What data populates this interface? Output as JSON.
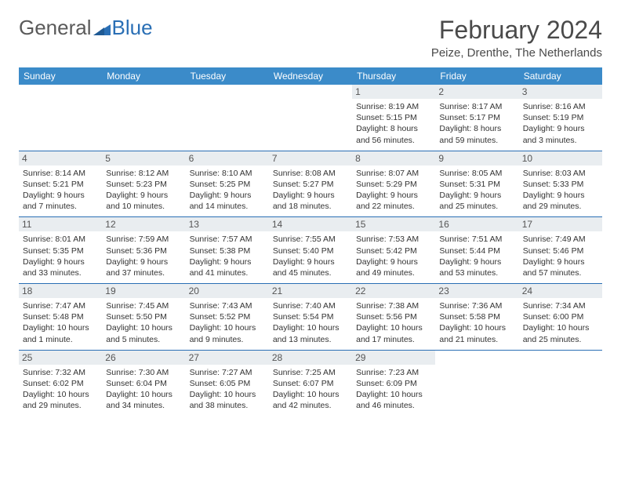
{
  "brand": {
    "name1": "General",
    "name2": "Blue",
    "color1": "#5a5a5a",
    "color2": "#2a6fb5"
  },
  "title": "February 2024",
  "location": "Peize, Drenthe, The Netherlands",
  "header_bg": "#3b8bc9",
  "header_text_color": "#ffffff",
  "border_color": "#2a6fb5",
  "daynum_bg": "#e9edf0",
  "daynames": [
    "Sunday",
    "Monday",
    "Tuesday",
    "Wednesday",
    "Thursday",
    "Friday",
    "Saturday"
  ],
  "weeks": [
    [
      null,
      null,
      null,
      null,
      {
        "n": "1",
        "sr": "Sunrise: 8:19 AM",
        "ss": "Sunset: 5:15 PM",
        "dl": "Daylight: 8 hours and 56 minutes."
      },
      {
        "n": "2",
        "sr": "Sunrise: 8:17 AM",
        "ss": "Sunset: 5:17 PM",
        "dl": "Daylight: 8 hours and 59 minutes."
      },
      {
        "n": "3",
        "sr": "Sunrise: 8:16 AM",
        "ss": "Sunset: 5:19 PM",
        "dl": "Daylight: 9 hours and 3 minutes."
      }
    ],
    [
      {
        "n": "4",
        "sr": "Sunrise: 8:14 AM",
        "ss": "Sunset: 5:21 PM",
        "dl": "Daylight: 9 hours and 7 minutes."
      },
      {
        "n": "5",
        "sr": "Sunrise: 8:12 AM",
        "ss": "Sunset: 5:23 PM",
        "dl": "Daylight: 9 hours and 10 minutes."
      },
      {
        "n": "6",
        "sr": "Sunrise: 8:10 AM",
        "ss": "Sunset: 5:25 PM",
        "dl": "Daylight: 9 hours and 14 minutes."
      },
      {
        "n": "7",
        "sr": "Sunrise: 8:08 AM",
        "ss": "Sunset: 5:27 PM",
        "dl": "Daylight: 9 hours and 18 minutes."
      },
      {
        "n": "8",
        "sr": "Sunrise: 8:07 AM",
        "ss": "Sunset: 5:29 PM",
        "dl": "Daylight: 9 hours and 22 minutes."
      },
      {
        "n": "9",
        "sr": "Sunrise: 8:05 AM",
        "ss": "Sunset: 5:31 PM",
        "dl": "Daylight: 9 hours and 25 minutes."
      },
      {
        "n": "10",
        "sr": "Sunrise: 8:03 AM",
        "ss": "Sunset: 5:33 PM",
        "dl": "Daylight: 9 hours and 29 minutes."
      }
    ],
    [
      {
        "n": "11",
        "sr": "Sunrise: 8:01 AM",
        "ss": "Sunset: 5:35 PM",
        "dl": "Daylight: 9 hours and 33 minutes."
      },
      {
        "n": "12",
        "sr": "Sunrise: 7:59 AM",
        "ss": "Sunset: 5:36 PM",
        "dl": "Daylight: 9 hours and 37 minutes."
      },
      {
        "n": "13",
        "sr": "Sunrise: 7:57 AM",
        "ss": "Sunset: 5:38 PM",
        "dl": "Daylight: 9 hours and 41 minutes."
      },
      {
        "n": "14",
        "sr": "Sunrise: 7:55 AM",
        "ss": "Sunset: 5:40 PM",
        "dl": "Daylight: 9 hours and 45 minutes."
      },
      {
        "n": "15",
        "sr": "Sunrise: 7:53 AM",
        "ss": "Sunset: 5:42 PM",
        "dl": "Daylight: 9 hours and 49 minutes."
      },
      {
        "n": "16",
        "sr": "Sunrise: 7:51 AM",
        "ss": "Sunset: 5:44 PM",
        "dl": "Daylight: 9 hours and 53 minutes."
      },
      {
        "n": "17",
        "sr": "Sunrise: 7:49 AM",
        "ss": "Sunset: 5:46 PM",
        "dl": "Daylight: 9 hours and 57 minutes."
      }
    ],
    [
      {
        "n": "18",
        "sr": "Sunrise: 7:47 AM",
        "ss": "Sunset: 5:48 PM",
        "dl": "Daylight: 10 hours and 1 minute."
      },
      {
        "n": "19",
        "sr": "Sunrise: 7:45 AM",
        "ss": "Sunset: 5:50 PM",
        "dl": "Daylight: 10 hours and 5 minutes."
      },
      {
        "n": "20",
        "sr": "Sunrise: 7:43 AM",
        "ss": "Sunset: 5:52 PM",
        "dl": "Daylight: 10 hours and 9 minutes."
      },
      {
        "n": "21",
        "sr": "Sunrise: 7:40 AM",
        "ss": "Sunset: 5:54 PM",
        "dl": "Daylight: 10 hours and 13 minutes."
      },
      {
        "n": "22",
        "sr": "Sunrise: 7:38 AM",
        "ss": "Sunset: 5:56 PM",
        "dl": "Daylight: 10 hours and 17 minutes."
      },
      {
        "n": "23",
        "sr": "Sunrise: 7:36 AM",
        "ss": "Sunset: 5:58 PM",
        "dl": "Daylight: 10 hours and 21 minutes."
      },
      {
        "n": "24",
        "sr": "Sunrise: 7:34 AM",
        "ss": "Sunset: 6:00 PM",
        "dl": "Daylight: 10 hours and 25 minutes."
      }
    ],
    [
      {
        "n": "25",
        "sr": "Sunrise: 7:32 AM",
        "ss": "Sunset: 6:02 PM",
        "dl": "Daylight: 10 hours and 29 minutes."
      },
      {
        "n": "26",
        "sr": "Sunrise: 7:30 AM",
        "ss": "Sunset: 6:04 PM",
        "dl": "Daylight: 10 hours and 34 minutes."
      },
      {
        "n": "27",
        "sr": "Sunrise: 7:27 AM",
        "ss": "Sunset: 6:05 PM",
        "dl": "Daylight: 10 hours and 38 minutes."
      },
      {
        "n": "28",
        "sr": "Sunrise: 7:25 AM",
        "ss": "Sunset: 6:07 PM",
        "dl": "Daylight: 10 hours and 42 minutes."
      },
      {
        "n": "29",
        "sr": "Sunrise: 7:23 AM",
        "ss": "Sunset: 6:09 PM",
        "dl": "Daylight: 10 hours and 46 minutes."
      },
      null,
      null
    ]
  ]
}
